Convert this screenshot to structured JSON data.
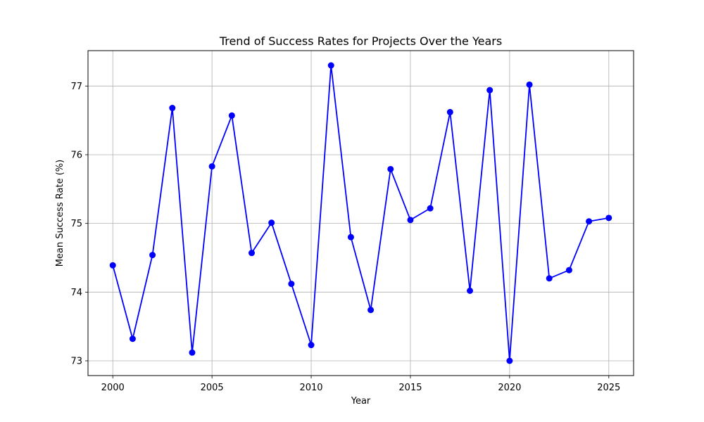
{
  "chart_data": {
    "type": "line",
    "title": "Trend of Success Rates for Projects Over the Years",
    "xlabel": "Year",
    "ylabel": "Mean Success Rate (%)",
    "xlim": [
      1998.75,
      2026.25
    ],
    "ylim": [
      72.785,
      77.515
    ],
    "xticks": [
      2000,
      2005,
      2010,
      2015,
      2020,
      2025
    ],
    "yticks": [
      73,
      74,
      75,
      76,
      77
    ],
    "grid": true,
    "series": [
      {
        "name": "Mean Success Rate",
        "color": "#0000ff",
        "marker": "circle",
        "x": [
          2000,
          2001,
          2002,
          2003,
          2004,
          2005,
          2006,
          2007,
          2008,
          2009,
          2010,
          2011,
          2012,
          2013,
          2014,
          2015,
          2016,
          2017,
          2018,
          2019,
          2020,
          2021,
          2022,
          2023,
          2024,
          2025
        ],
        "values": [
          74.39,
          73.32,
          74.54,
          76.68,
          73.12,
          75.83,
          76.57,
          74.57,
          75.01,
          74.12,
          73.23,
          77.3,
          74.8,
          73.74,
          75.79,
          75.05,
          75.22,
          76.62,
          74.02,
          76.94,
          73.0,
          77.02,
          74.2,
          74.32,
          75.03,
          75.08
        ]
      }
    ]
  }
}
